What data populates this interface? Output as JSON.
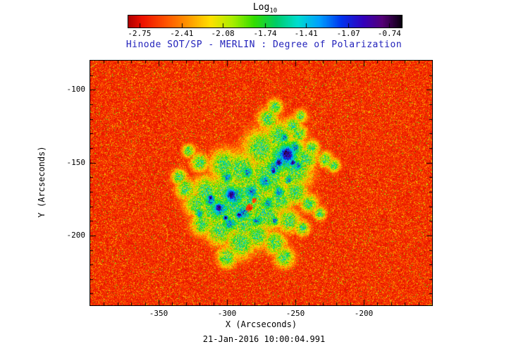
{
  "chart_data": {
    "type": "heatmap",
    "title": "Hinode SOT/SP - MERLIN : Degree of Polarization",
    "caption": "21-Jan-2016 10:00:04.991",
    "xlabel": "X (Arcseconds)",
    "ylabel": "Y (Arcseconds)",
    "xlim": [
      -400,
      -150
    ],
    "ylim": [
      -248,
      -80
    ],
    "x_ticks": [
      {
        "label": "-350",
        "value": -350
      },
      {
        "label": "-300",
        "value": -300
      },
      {
        "label": "-250",
        "value": -250
      },
      {
        "label": "-200",
        "value": -200
      }
    ],
    "y_ticks": [
      {
        "label": "-100",
        "value": -100
      },
      {
        "label": "-150",
        "value": -150
      },
      {
        "label": "-200",
        "value": -200
      }
    ],
    "minor_tick_step": 10,
    "colorbar": {
      "title_main": "Log",
      "title_sub": "10",
      "min": -2.84,
      "max": -0.64,
      "ticks": [
        {
          "label": "-2.75",
          "value": -2.75
        },
        {
          "label": "-2.41",
          "value": -2.41
        },
        {
          "label": "-2.08",
          "value": -2.08
        },
        {
          "label": "-1.74",
          "value": -1.74
        },
        {
          "label": "-1.41",
          "value": -1.41
        },
        {
          "label": "-1.07",
          "value": -1.07
        },
        {
          "label": "-0.74",
          "value": -0.74
        }
      ]
    },
    "colors": {
      "title": "#2222bb",
      "frame": "#000000",
      "background": "#ffffff"
    },
    "colormap_stops": [
      [
        0.0,
        "#b00000"
      ],
      [
        0.05,
        "#ee1100"
      ],
      [
        0.14,
        "#ff5500"
      ],
      [
        0.22,
        "#ff9900"
      ],
      [
        0.3,
        "#ffe000"
      ],
      [
        0.38,
        "#aaee00"
      ],
      [
        0.46,
        "#33dd00"
      ],
      [
        0.54,
        "#00cc66"
      ],
      [
        0.62,
        "#00ddd0"
      ],
      [
        0.7,
        "#00a0ff"
      ],
      [
        0.78,
        "#0033ee"
      ],
      [
        0.86,
        "#3300bb"
      ],
      [
        0.93,
        "#550077"
      ],
      [
        1.0,
        "#0a0010"
      ]
    ],
    "seed": 20160121,
    "noise": {
      "base": 0.03,
      "amp": 0.1,
      "strong_rate": 0.03,
      "strong_lo": 0.25,
      "strong_span": 0.25,
      "weak_rate": 0.18,
      "weak_lo": 0.05,
      "weak_span": 0.13
    },
    "features": {
      "halo": {
        "amp": 0.5,
        "nlo": 0.55,
        "nspan": 0.9,
        "blobs": [
          [
            -258,
            -147,
            20
          ],
          [
            -270,
            -160,
            18
          ],
          [
            -283,
            -172,
            20
          ],
          [
            -295,
            -180,
            18
          ],
          [
            -300,
            -170,
            16
          ],
          [
            -310,
            -182,
            14
          ],
          [
            -288,
            -190,
            16
          ],
          [
            -272,
            -185,
            14
          ],
          [
            -262,
            -175,
            12
          ],
          [
            -250,
            -155,
            14
          ],
          [
            -243,
            -147,
            10
          ],
          [
            -262,
            -132,
            12
          ],
          [
            -275,
            -140,
            14
          ],
          [
            -290,
            -155,
            14
          ],
          [
            -302,
            -152,
            12
          ],
          [
            -315,
            -170,
            12
          ],
          [
            -322,
            -178,
            10
          ],
          [
            -305,
            -196,
            12
          ],
          [
            -290,
            -205,
            12
          ],
          [
            -278,
            -200,
            10
          ],
          [
            -265,
            -205,
            9
          ],
          [
            -258,
            -215,
            8
          ],
          [
            -300,
            -215,
            8
          ],
          [
            -318,
            -192,
            9
          ],
          [
            -330,
            -168,
            8
          ],
          [
            -335,
            -160,
            6
          ],
          [
            -270,
            -120,
            8
          ],
          [
            -265,
            -112,
            6
          ],
          [
            -248,
            -130,
            7
          ],
          [
            -238,
            -140,
            6
          ],
          [
            -228,
            -148,
            6
          ],
          [
            -222,
            -152,
            5
          ],
          [
            -250,
            -170,
            10
          ],
          [
            -240,
            -178,
            7
          ],
          [
            -232,
            -185,
            5
          ],
          [
            -320,
            -150,
            7
          ],
          [
            -328,
            -142,
            5
          ],
          [
            -255,
            -190,
            9
          ],
          [
            -245,
            -195,
            6
          ],
          [
            -252,
            -125,
            7
          ],
          [
            -246,
            -118,
            5
          ]
        ]
      },
      "blue": {
        "amp": 0.74,
        "nlo": 0.6,
        "nspan": 0.65,
        "blobs": [
          [
            -257,
            -146,
            12
          ],
          [
            -265,
            -153,
            7
          ],
          [
            -250,
            -140,
            6
          ],
          [
            -272,
            -163,
            6
          ],
          [
            -295,
            -173,
            9
          ],
          [
            -305,
            -182,
            8
          ],
          [
            -288,
            -184,
            7
          ],
          [
            -282,
            -170,
            6
          ],
          [
            -312,
            -176,
            6
          ],
          [
            -298,
            -192,
            6
          ],
          [
            -300,
            -160,
            5
          ],
          [
            -285,
            -157,
            5
          ],
          [
            -262,
            -170,
            5
          ],
          [
            -255,
            -162,
            4
          ],
          [
            -270,
            -178,
            5
          ],
          [
            -278,
            -190,
            5
          ],
          [
            -265,
            -190,
            4
          ],
          [
            -320,
            -185,
            4
          ],
          [
            -258,
            -133,
            4
          ],
          [
            -248,
            -152,
            4
          ]
        ]
      },
      "cores": {
        "amp": 0.97,
        "nlo": 0.82,
        "nspan": 0.33,
        "blobs": [
          [
            -256,
            -144,
            7
          ],
          [
            -262,
            -150,
            4
          ],
          [
            -252,
            -150,
            3
          ],
          [
            -297,
            -172,
            5
          ],
          [
            -306,
            -181,
            4
          ],
          [
            -291,
            -186,
            3
          ],
          [
            -312,
            -174,
            2.5
          ],
          [
            -301,
            -188,
            2.5
          ],
          [
            -266,
            -156,
            2.5
          ]
        ]
      },
      "holes": [
        [
          -284,
          -181,
          3
        ],
        [
          -280,
          -176,
          2
        ]
      ]
    }
  }
}
